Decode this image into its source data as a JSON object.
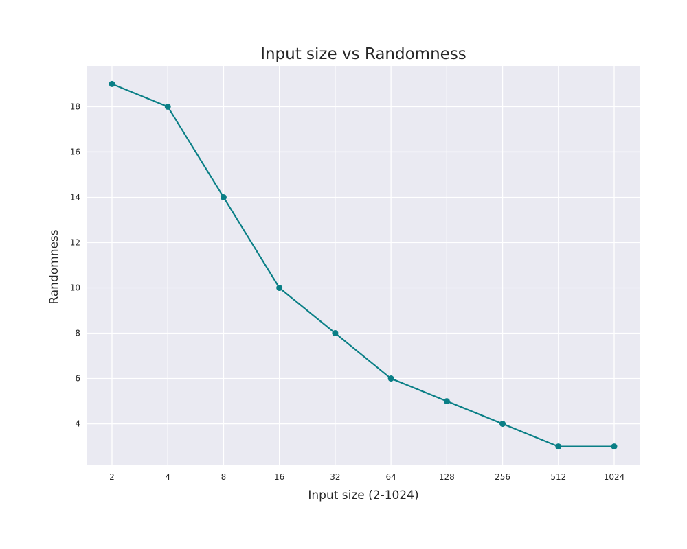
{
  "chart_data": {
    "type": "line",
    "title": "Input size vs Randomness",
    "xlabel": "Input size (2-1024)",
    "ylabel": "Randomness",
    "x_scale": "log2",
    "categories": [
      "2",
      "4",
      "8",
      "16",
      "32",
      "64",
      "128",
      "256",
      "512",
      "1024"
    ],
    "x": [
      2,
      4,
      8,
      16,
      32,
      64,
      128,
      256,
      512,
      1024
    ],
    "series": [
      {
        "values": [
          19,
          18,
          14,
          10,
          8,
          6,
          5,
          4,
          3,
          3
        ]
      }
    ],
    "yticks": [
      4,
      6,
      8,
      10,
      12,
      14,
      16,
      18
    ],
    "ylim": [
      2.2,
      19.8
    ],
    "grid": true,
    "legend": "none",
    "colors": {
      "line": "#0a7f86",
      "plot_background": "#eaeaf2",
      "grid": "#ffffff",
      "text": "#262626"
    }
  }
}
